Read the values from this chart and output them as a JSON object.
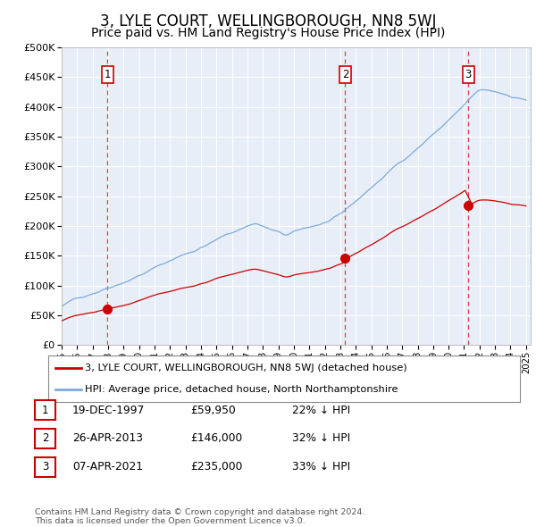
{
  "title": "3, LYLE COURT, WELLINGBOROUGH, NN8 5WJ",
  "subtitle": "Price paid vs. HM Land Registry's House Price Index (HPI)",
  "title_fontsize": 12,
  "subtitle_fontsize": 10,
  "background_color": "#ffffff",
  "plot_bg_color": "#e8eef8",
  "ylim": [
    0,
    500000
  ],
  "yticks": [
    0,
    50000,
    100000,
    150000,
    200000,
    250000,
    300000,
    350000,
    400000,
    450000,
    500000
  ],
  "sales": [
    {
      "date_num": 1997.97,
      "price": 59950,
      "label": "1"
    },
    {
      "date_num": 2013.32,
      "price": 146000,
      "label": "2"
    },
    {
      "date_num": 2021.27,
      "price": 235000,
      "label": "3"
    }
  ],
  "sale_color": "#cc0000",
  "hpi_color": "#7aaadd",
  "dashed_line_color": "#cc3333",
  "legend_entries": [
    "3, LYLE COURT, WELLINGBOROUGH, NN8 5WJ (detached house)",
    "HPI: Average price, detached house, North Northamptonshire"
  ],
  "table_rows": [
    {
      "num": "1",
      "date": "19-DEC-1997",
      "price": "£59,950",
      "hpi": "22% ↓ HPI"
    },
    {
      "num": "2",
      "date": "26-APR-2013",
      "price": "£146,000",
      "hpi": "32% ↓ HPI"
    },
    {
      "num": "3",
      "date": "07-APR-2021",
      "price": "£235,000",
      "hpi": "33% ↓ HPI"
    }
  ],
  "footer": "Contains HM Land Registry data © Crown copyright and database right 2024.\nThis data is licensed under the Open Government Licence v3.0."
}
